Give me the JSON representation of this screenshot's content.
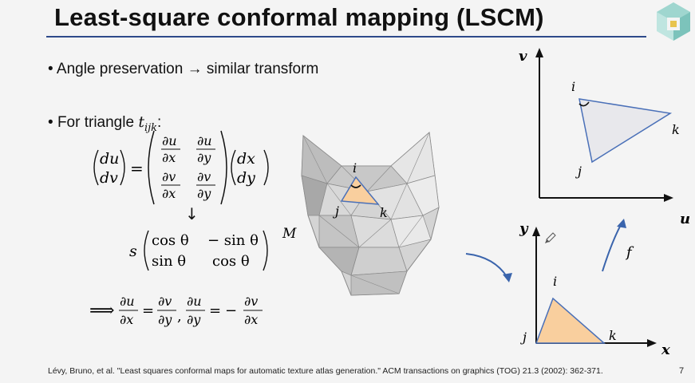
{
  "slide": {
    "title": "Least-square conformal mapping (LSCM)",
    "bullet1": "Angle preservation → similar transform",
    "bullet2_prefix": "For triangle ",
    "bullet2_var": "t",
    "bullet2_sub": "ijk",
    "bullet2_suffix": ":",
    "citation": "Lévy, Bruno, et al. \"Least squares conformal maps for automatic texture atlas generation.\" ACM transactions on graphics (TOG) 21.3 (2002): 362-371.",
    "page_number": "7",
    "logo_icon": "cube-logo-icon"
  },
  "equations": {
    "vec_left": [
      "du",
      "dv"
    ],
    "jacobian": {
      "r1c1": [
        "∂u",
        "∂x"
      ],
      "r1c2": [
        "∂u",
        "∂y"
      ],
      "r2c1": [
        "∂v",
        "∂x"
      ],
      "r2c2": [
        "∂v",
        "∂y"
      ]
    },
    "vec_right": [
      "dx",
      "dy"
    ],
    "down_arrow": "↓",
    "scale": "s",
    "rotation": {
      "r1c1": "cos θ",
      "r1c2": "− sin θ",
      "r2c1": "sin θ",
      "r2c2": "cos θ"
    },
    "implies": "⟹",
    "cr1_num_l": "∂u",
    "cr1_den_l": "∂x",
    "cr1_num_r": "∂v",
    "cr1_den_r": "∂y",
    "comma": ",",
    "cr2_num_l": "∂u",
    "cr2_den_l": "∂y",
    "cr2_minus": "−",
    "cr2_num_r": "∂v",
    "cr2_den_r": "∂x"
  },
  "mesh": {
    "label_M": "M",
    "vertex_i": "i",
    "vertex_j": "j",
    "vertex_k": "k"
  },
  "uv_plot": {
    "axis_v": "v",
    "axis_u": "u",
    "vertex_i": "i",
    "vertex_j": "j",
    "vertex_k": "k"
  },
  "xy_plot": {
    "axis_y": "y",
    "axis_x": "x",
    "vertex_i": "i",
    "vertex_j": "j",
    "vertex_k": "k",
    "map_label": "f"
  },
  "colors": {
    "title_rule": "#2e4a8a",
    "triangle_fill": "#f9cf9e",
    "uv_triangle_fill": "#e8e8ec",
    "arrow": "#3a64ac",
    "edge_blue": "#4a70b8"
  }
}
